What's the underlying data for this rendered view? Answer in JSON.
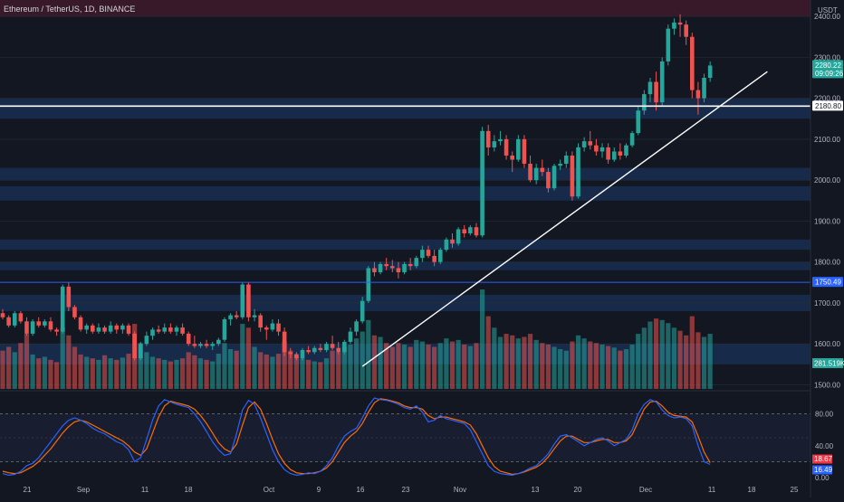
{
  "header": {
    "title": "Ethereum / TetherUS, 1D, BINANCE"
  },
  "currency_label": "USDT",
  "colors": {
    "up": "#26a69a",
    "down": "#ef5350",
    "background": "#131722",
    "zone": "#1e3a6a",
    "resistance_zone": "#3d1a2a",
    "k_line": "#2962ff",
    "d_line": "#ff6d00"
  },
  "chart_data": [
    {
      "type": "candlestick",
      "title": "",
      "y_axis": {
        "ticks": [
          1500,
          1600,
          1700,
          1800,
          1900,
          2000,
          2100,
          2200,
          2300,
          2400
        ],
        "tick_labels": [
          "1500.00",
          "1600.00",
          "1700.00",
          "1800.00",
          "1900.00",
          "2000.00",
          "2100.00",
          "2200.00",
          "2300.00",
          "2400.00"
        ],
        "range": [
          1490,
          2440
        ]
      },
      "x_axis": {
        "tick_labels": [
          "21",
          "Sep",
          "11",
          "18",
          "Oct",
          "9",
          "16",
          "23",
          "Nov",
          "13",
          "20",
          "Dec",
          "11",
          "18",
          "25"
        ]
      },
      "price_tags": [
        {
          "label": "2280.22",
          "value": 2280.22,
          "sub": "09:09:26",
          "kind": "last"
        },
        {
          "label": "2180.80",
          "value": 2180.8,
          "kind": "line"
        },
        {
          "label": "1750.49",
          "value": 1750.49,
          "kind": "line"
        }
      ],
      "horizontal_lines": [
        2180.8,
        1750.49
      ],
      "zones": [
        [
          2400,
          2495
        ],
        [
          2150,
          2200
        ],
        [
          2000,
          2030
        ],
        [
          1950,
          1985
        ],
        [
          1830,
          1855
        ],
        [
          1780,
          1800
        ],
        [
          1680,
          1720
        ],
        [
          1550,
          1600
        ]
      ],
      "trendline": {
        "from": {
          "index": 60,
          "price": 1545
        },
        "to": {
          "index": 120,
          "price": 2265
        }
      },
      "candles": [
        [
          1675,
          1685,
          1660,
          1665
        ],
        [
          1665,
          1670,
          1640,
          1645
        ],
        [
          1645,
          1680,
          1640,
          1675
        ],
        [
          1675,
          1680,
          1650,
          1655
        ],
        [
          1655,
          1665,
          1620,
          1625
        ],
        [
          1625,
          1660,
          1620,
          1655
        ],
        [
          1655,
          1665,
          1640,
          1645
        ],
        [
          1645,
          1660,
          1640,
          1655
        ],
        [
          1655,
          1665,
          1630,
          1635
        ],
        [
          1635,
          1640,
          1620,
          1630
        ],
        [
          1630,
          1745,
          1625,
          1740
        ],
        [
          1740,
          1750,
          1680,
          1690
        ],
        [
          1690,
          1695,
          1660,
          1665
        ],
        [
          1665,
          1670,
          1630,
          1635
        ],
        [
          1635,
          1650,
          1625,
          1645
        ],
        [
          1645,
          1650,
          1625,
          1630
        ],
        [
          1630,
          1650,
          1625,
          1640
        ],
        [
          1640,
          1645,
          1625,
          1630
        ],
        [
          1630,
          1655,
          1625,
          1645
        ],
        [
          1645,
          1650,
          1625,
          1635
        ],
        [
          1635,
          1650,
          1625,
          1645
        ],
        [
          1645,
          1650,
          1620,
          1625
        ],
        [
          1625,
          1630,
          1560,
          1565
        ],
        [
          1565,
          1605,
          1560,
          1600
        ],
        [
          1600,
          1630,
          1595,
          1620
        ],
        [
          1620,
          1640,
          1610,
          1635
        ],
        [
          1635,
          1645,
          1625,
          1630
        ],
        [
          1630,
          1650,
          1625,
          1640
        ],
        [
          1640,
          1650,
          1625,
          1630
        ],
        [
          1630,
          1645,
          1620,
          1640
        ],
        [
          1640,
          1650,
          1620,
          1625
        ],
        [
          1625,
          1630,
          1595,
          1600
        ],
        [
          1600,
          1620,
          1590,
          1595
        ],
        [
          1595,
          1605,
          1590,
          1600
        ],
        [
          1600,
          1610,
          1590,
          1595
        ],
        [
          1595,
          1605,
          1585,
          1600
        ],
        [
          1600,
          1615,
          1595,
          1610
        ],
        [
          1610,
          1665,
          1605,
          1660
        ],
        [
          1660,
          1675,
          1645,
          1670
        ],
        [
          1670,
          1680,
          1660,
          1665
        ],
        [
          1665,
          1750,
          1660,
          1745
        ],
        [
          1745,
          1750,
          1655,
          1665
        ],
        [
          1665,
          1685,
          1655,
          1670
        ],
        [
          1670,
          1675,
          1630,
          1640
        ],
        [
          1640,
          1645,
          1610,
          1635
        ],
        [
          1635,
          1660,
          1630,
          1650
        ],
        [
          1650,
          1660,
          1620,
          1630
        ],
        [
          1630,
          1640,
          1570,
          1580
        ],
        [
          1580,
          1590,
          1565,
          1575
        ],
        [
          1575,
          1580,
          1560,
          1565
        ],
        [
          1565,
          1590,
          1560,
          1585
        ],
        [
          1585,
          1595,
          1575,
          1580
        ],
        [
          1580,
          1595,
          1575,
          1590
        ],
        [
          1590,
          1600,
          1580,
          1585
        ],
        [
          1585,
          1605,
          1580,
          1600
        ],
        [
          1600,
          1620,
          1585,
          1590
        ],
        [
          1590,
          1605,
          1575,
          1580
        ],
        [
          1580,
          1610,
          1575,
          1605
        ],
        [
          1605,
          1640,
          1600,
          1630
        ],
        [
          1630,
          1660,
          1620,
          1655
        ],
        [
          1655,
          1715,
          1650,
          1705
        ],
        [
          1705,
          1790,
          1700,
          1785
        ],
        [
          1785,
          1800,
          1765,
          1775
        ],
        [
          1775,
          1800,
          1770,
          1795
        ],
        [
          1795,
          1810,
          1780,
          1790
        ],
        [
          1790,
          1805,
          1775,
          1785
        ],
        [
          1785,
          1800,
          1760,
          1775
        ],
        [
          1775,
          1800,
          1770,
          1795
        ],
        [
          1795,
          1810,
          1780,
          1790
        ],
        [
          1790,
          1815,
          1785,
          1810
        ],
        [
          1810,
          1840,
          1800,
          1830
        ],
        [
          1830,
          1840,
          1810,
          1815
        ],
        [
          1815,
          1830,
          1790,
          1800
        ],
        [
          1800,
          1835,
          1795,
          1830
        ],
        [
          1830,
          1860,
          1825,
          1855
        ],
        [
          1855,
          1870,
          1835,
          1845
        ],
        [
          1845,
          1885,
          1840,
          1880
        ],
        [
          1880,
          1890,
          1860,
          1870
        ],
        [
          1870,
          1890,
          1865,
          1885
        ],
        [
          1885,
          1895,
          1860,
          1865
        ],
        [
          1865,
          2130,
          1860,
          2120
        ],
        [
          2120,
          2135,
          2060,
          2080
        ],
        [
          2080,
          2110,
          2070,
          2095
        ],
        [
          2095,
          2120,
          2085,
          2100
        ],
        [
          2100,
          2110,
          2050,
          2060
        ],
        [
          2060,
          2070,
          2020,
          2050
        ],
        [
          2050,
          2110,
          2045,
          2100
        ],
        [
          2100,
          2110,
          2030,
          2040
        ],
        [
          2040,
          2060,
          1995,
          2000
        ],
        [
          2000,
          2040,
          1990,
          2030
        ],
        [
          2030,
          2050,
          2010,
          2020
        ],
        [
          2020,
          2030,
          1970,
          1980
        ],
        [
          1980,
          2040,
          1975,
          2035
        ],
        [
          2035,
          2050,
          2025,
          2040
        ],
        [
          2040,
          2070,
          2030,
          2060
        ],
        [
          2060,
          2070,
          1950,
          1960
        ],
        [
          1960,
          2090,
          1955,
          2080
        ],
        [
          2080,
          2105,
          2070,
          2095
        ],
        [
          2095,
          2120,
          2075,
          2085
        ],
        [
          2085,
          2100,
          2060,
          2070
        ],
        [
          2070,
          2090,
          2055,
          2080
        ],
        [
          2080,
          2090,
          2040,
          2050
        ],
        [
          2050,
          2080,
          2045,
          2070
        ],
        [
          2070,
          2090,
          2050,
          2060
        ],
        [
          2060,
          2090,
          2055,
          2085
        ],
        [
          2085,
          2120,
          2080,
          2115
        ],
        [
          2115,
          2180,
          2110,
          2170
        ],
        [
          2170,
          2220,
          2160,
          2210
        ],
        [
          2210,
          2250,
          2190,
          2240
        ],
        [
          2240,
          2265,
          2170,
          2190
        ],
        [
          2190,
          2300,
          2180,
          2290
        ],
        [
          2290,
          2380,
          2280,
          2370
        ],
        [
          2370,
          2395,
          2355,
          2385
        ],
        [
          2385,
          2405,
          2350,
          2380
        ],
        [
          2380,
          2390,
          2330,
          2350
        ],
        [
          2350,
          2360,
          2200,
          2220
        ],
        [
          2220,
          2240,
          2160,
          2200
        ],
        [
          2200,
          2260,
          2190,
          2250
        ],
        [
          2250,
          2290,
          2240,
          2280
        ]
      ],
      "volume": [
        50,
        55,
        48,
        60,
        72,
        45,
        40,
        42,
        38,
        35,
        80,
        70,
        55,
        45,
        42,
        40,
        38,
        44,
        40,
        38,
        41,
        46,
        85,
        60,
        48,
        42,
        40,
        38,
        36,
        38,
        40,
        48,
        44,
        40,
        38,
        36,
        46,
        60,
        52,
        50,
        85,
        80,
        55,
        48,
        45,
        42,
        46,
        62,
        50,
        44,
        40,
        38,
        36,
        35,
        40,
        50,
        48,
        55,
        58,
        66,
        75,
        90,
        70,
        68,
        60,
        55,
        60,
        58,
        55,
        64,
        62,
        58,
        55,
        60,
        66,
        62,
        64,
        58,
        56,
        60,
        130,
        95,
        80,
        68,
        72,
        70,
        66,
        68,
        72,
        64,
        60,
        58,
        55,
        52,
        50,
        62,
        70,
        66,
        62,
        60,
        58,
        56,
        54,
        50,
        52,
        58,
        72,
        80,
        88,
        92,
        90,
        86,
        80,
        76,
        70,
        95,
        74,
        68,
        72
      ],
      "volume_label": "281.519K",
      "oscillator": {
        "k": [
          5,
          3,
          4,
          8,
          15,
          18,
          25,
          35,
          45,
          55,
          65,
          72,
          75,
          72,
          68,
          62,
          58,
          55,
          50,
          45,
          42,
          35,
          20,
          25,
          48,
          72,
          90,
          98,
          95,
          92,
          90,
          88,
          80,
          70,
          58,
          45,
          35,
          28,
          30,
          55,
          85,
          97,
          92,
          75,
          55,
          35,
          20,
          10,
          5,
          3,
          4,
          6,
          5,
          8,
          15,
          25,
          40,
          52,
          58,
          62,
          75,
          90,
          100,
          98,
          97,
          95,
          92,
          88,
          86,
          90,
          82,
          70,
          72,
          78,
          74,
          72,
          70,
          68,
          60,
          45,
          30,
          15,
          8,
          5,
          4,
          3,
          5,
          8,
          12,
          15,
          22,
          30,
          42,
          52,
          54,
          50,
          45,
          40,
          44,
          48,
          50,
          46,
          40,
          44,
          48,
          60,
          80,
          92,
          98,
          95,
          85,
          78,
          75,
          76,
          74,
          65,
          40,
          20,
          16.49
        ],
        "d": [
          8,
          6,
          5,
          6,
          10,
          14,
          20,
          28,
          36,
          46,
          56,
          64,
          70,
          72,
          70,
          66,
          62,
          58,
          54,
          50,
          46,
          40,
          32,
          28,
          36,
          56,
          76,
          90,
          96,
          94,
          92,
          90,
          86,
          78,
          68,
          56,
          44,
          36,
          32,
          42,
          66,
          88,
          95,
          86,
          68,
          48,
          30,
          18,
          10,
          6,
          5,
          5,
          6,
          8,
          12,
          20,
          32,
          44,
          52,
          58,
          68,
          82,
          94,
          99,
          98,
          96,
          94,
          90,
          88,
          88,
          86,
          78,
          74,
          76,
          76,
          74,
          72,
          70,
          66,
          55,
          40,
          25,
          14,
          8,
          6,
          4,
          5,
          7,
          10,
          13,
          18,
          26,
          36,
          46,
          52,
          52,
          48,
          44,
          44,
          46,
          48,
          48,
          44,
          44,
          46,
          54,
          70,
          86,
          95,
          96,
          90,
          82,
          78,
          77,
          76,
          70,
          52,
          32,
          18.67
        ],
        "levels": [
          80,
          20
        ],
        "ticks": [
          0,
          40,
          80
        ],
        "tick_labels": [
          "0.00",
          "40.00",
          "80.00"
        ],
        "k_label": "16.49",
        "d_label": "18.67"
      }
    }
  ]
}
